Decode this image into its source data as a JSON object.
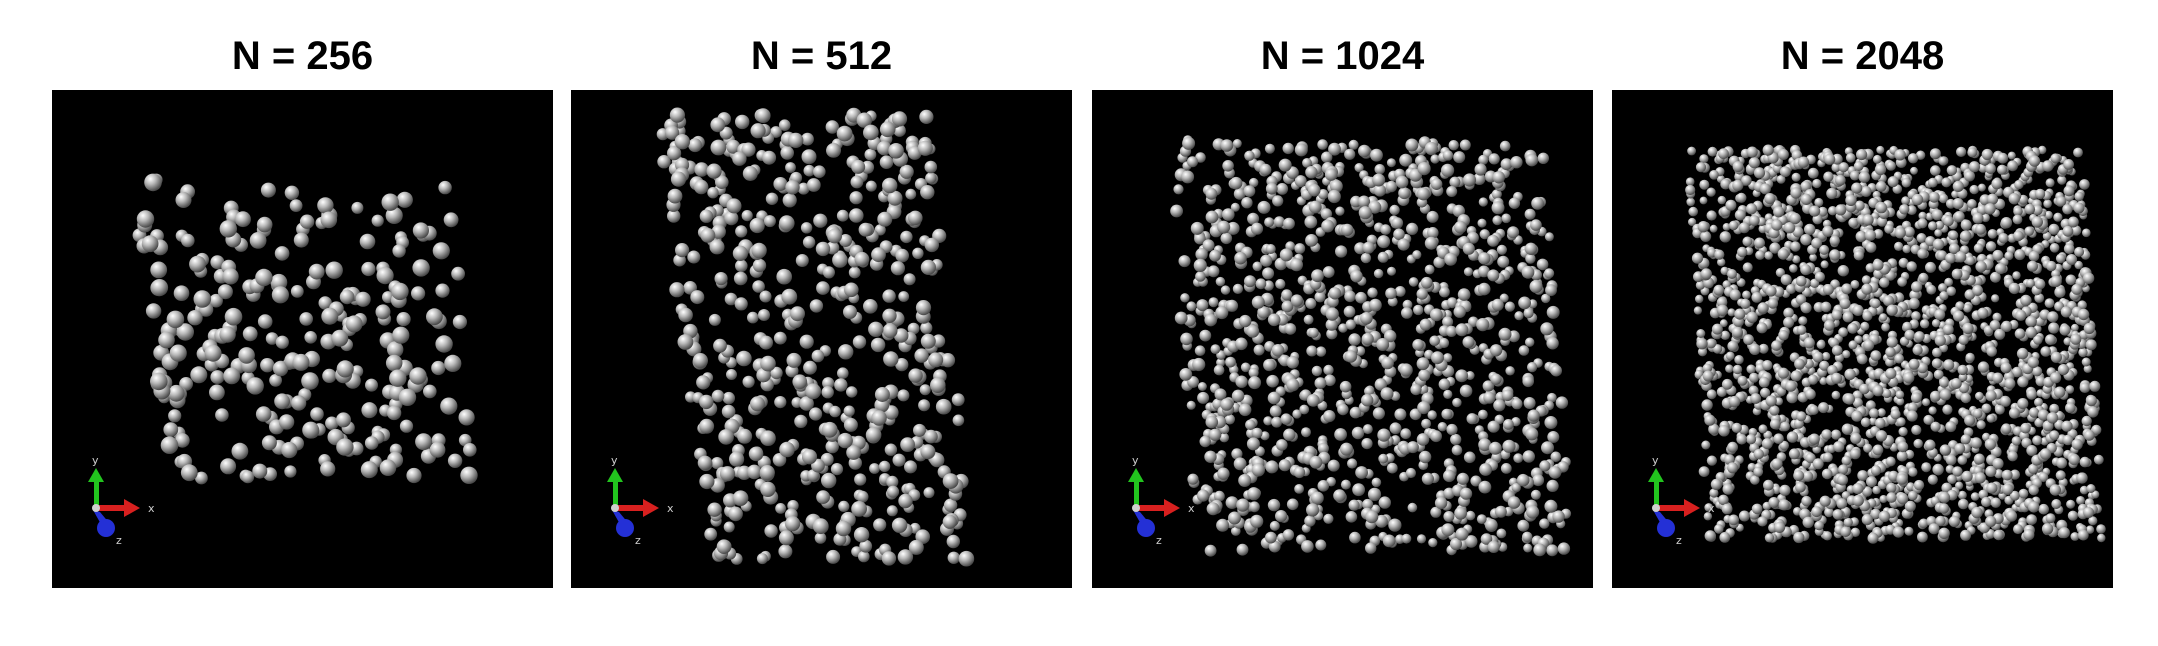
{
  "panels": [
    {
      "id": "n256",
      "title": "N = 256",
      "count": 256,
      "seed": 11,
      "extent": [
        0.19,
        0.18,
        0.82,
        0.78
      ],
      "shear": 0.05,
      "ballRadius": 8.0
    },
    {
      "id": "n512",
      "title": "N = 512",
      "count": 512,
      "seed": 23,
      "extent": [
        0.22,
        0.05,
        0.76,
        0.95
      ],
      "shear": 0.1,
      "ballRadius": 7.2
    },
    {
      "id": "n1024",
      "title": "N = 1024",
      "count": 1024,
      "seed": 37,
      "extent": [
        0.18,
        0.1,
        0.93,
        0.93
      ],
      "shear": 0.06,
      "ballRadius": 6.0
    },
    {
      "id": "n2048",
      "title": "N = 2048",
      "count": 2048,
      "seed": 51,
      "extent": [
        0.17,
        0.12,
        0.96,
        0.9
      ],
      "shear": 0.04,
      "ballRadius": 5.2
    }
  ],
  "axes": {
    "x_label": "x",
    "y_label": "y",
    "z_label": "z",
    "x_color": "#d8201f",
    "y_color": "#22c41e",
    "z_color": "#2430d6"
  },
  "colors": {
    "background": "#000000",
    "sphere_light": "#ffffff",
    "sphere_mid": "#b8b8b8",
    "sphere_dark": "#4a4a4a"
  }
}
